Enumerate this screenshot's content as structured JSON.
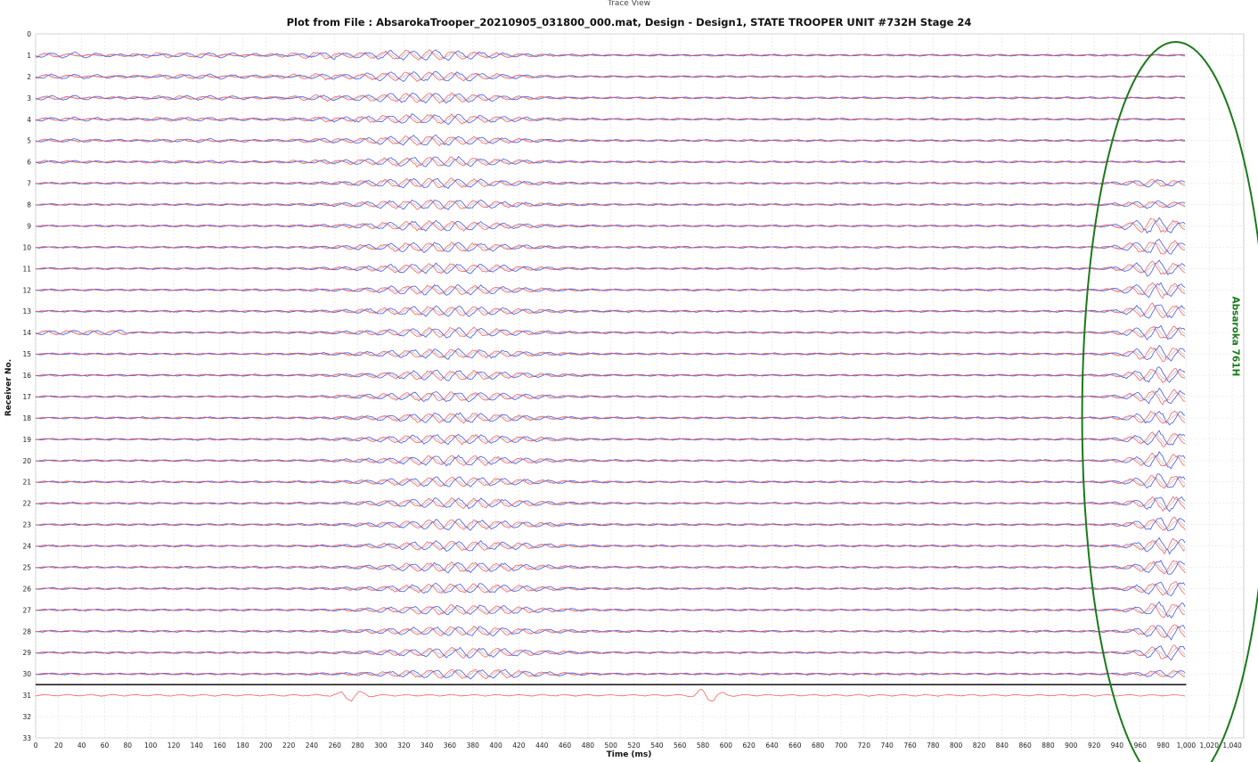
{
  "window": {
    "title": "Trace View"
  },
  "chart_data": {
    "type": "line",
    "title": "Plot from File : AbsarokaTrooper_20210905_031800_000.mat, Design - Design1, STATE TROOPER UNIT #732H Stage 24",
    "xlabel": "Time (ms)",
    "ylabel": "Receiver No.",
    "xlim": [
      0,
      1050
    ],
    "ylim": [
      0,
      33
    ],
    "y_inverted": true,
    "grid": true,
    "x_ticks": [
      "0",
      "20",
      "40",
      "60",
      "80",
      "100",
      "120",
      "140",
      "160",
      "180",
      "200",
      "220",
      "240",
      "260",
      "280",
      "300",
      "320",
      "340",
      "360",
      "380",
      "400",
      "420",
      "440",
      "460",
      "480",
      "500",
      "520",
      "540",
      "560",
      "580",
      "600",
      "620",
      "640",
      "660",
      "680",
      "700",
      "720",
      "740",
      "760",
      "780",
      "800",
      "820",
      "840",
      "860",
      "880",
      "900",
      "920",
      "940",
      "960",
      "980",
      "1,000",
      "1,020",
      "1,040"
    ],
    "y_ticks": [
      "0",
      "1",
      "2",
      "3",
      "4",
      "5",
      "6",
      "7",
      "8",
      "9",
      "10",
      "11",
      "12",
      "13",
      "14",
      "15",
      "16",
      "17",
      "18",
      "19",
      "20",
      "21",
      "22",
      "23",
      "24",
      "25",
      "26",
      "27",
      "28",
      "29",
      "30",
      "31",
      "32",
      "33"
    ],
    "receivers": [
      1,
      2,
      3,
      4,
      5,
      6,
      7,
      8,
      9,
      10,
      11,
      12,
      13,
      14,
      15,
      16,
      17,
      18,
      19,
      20,
      21,
      22,
      23,
      24,
      25,
      26,
      27,
      28,
      29,
      30,
      31
    ],
    "trace_end_ms": 1000,
    "separator_after_receiver": 30.5,
    "series": [
      {
        "component": "blue",
        "color": "#3344ee"
      },
      {
        "component": "red",
        "color": "#ee5555"
      },
      {
        "component": "gray",
        "color": "#aaaaaa"
      }
    ],
    "events": [
      {
        "time_ms": 360,
        "receivers": [
          1,
          30
        ]
      },
      {
        "time_ms": 980,
        "receivers": [
          7,
          30
        ]
      },
      {
        "time_ms": 275,
        "receivers": [
          31,
          31
        ]
      },
      {
        "time_ms": 585,
        "receivers": [
          31,
          31
        ]
      }
    ],
    "annotation": {
      "text": "Absaroka 761H",
      "shape": "ellipse",
      "color": "#1a7a1a",
      "center_ms": 980,
      "center_receiver": 17.5
    }
  }
}
